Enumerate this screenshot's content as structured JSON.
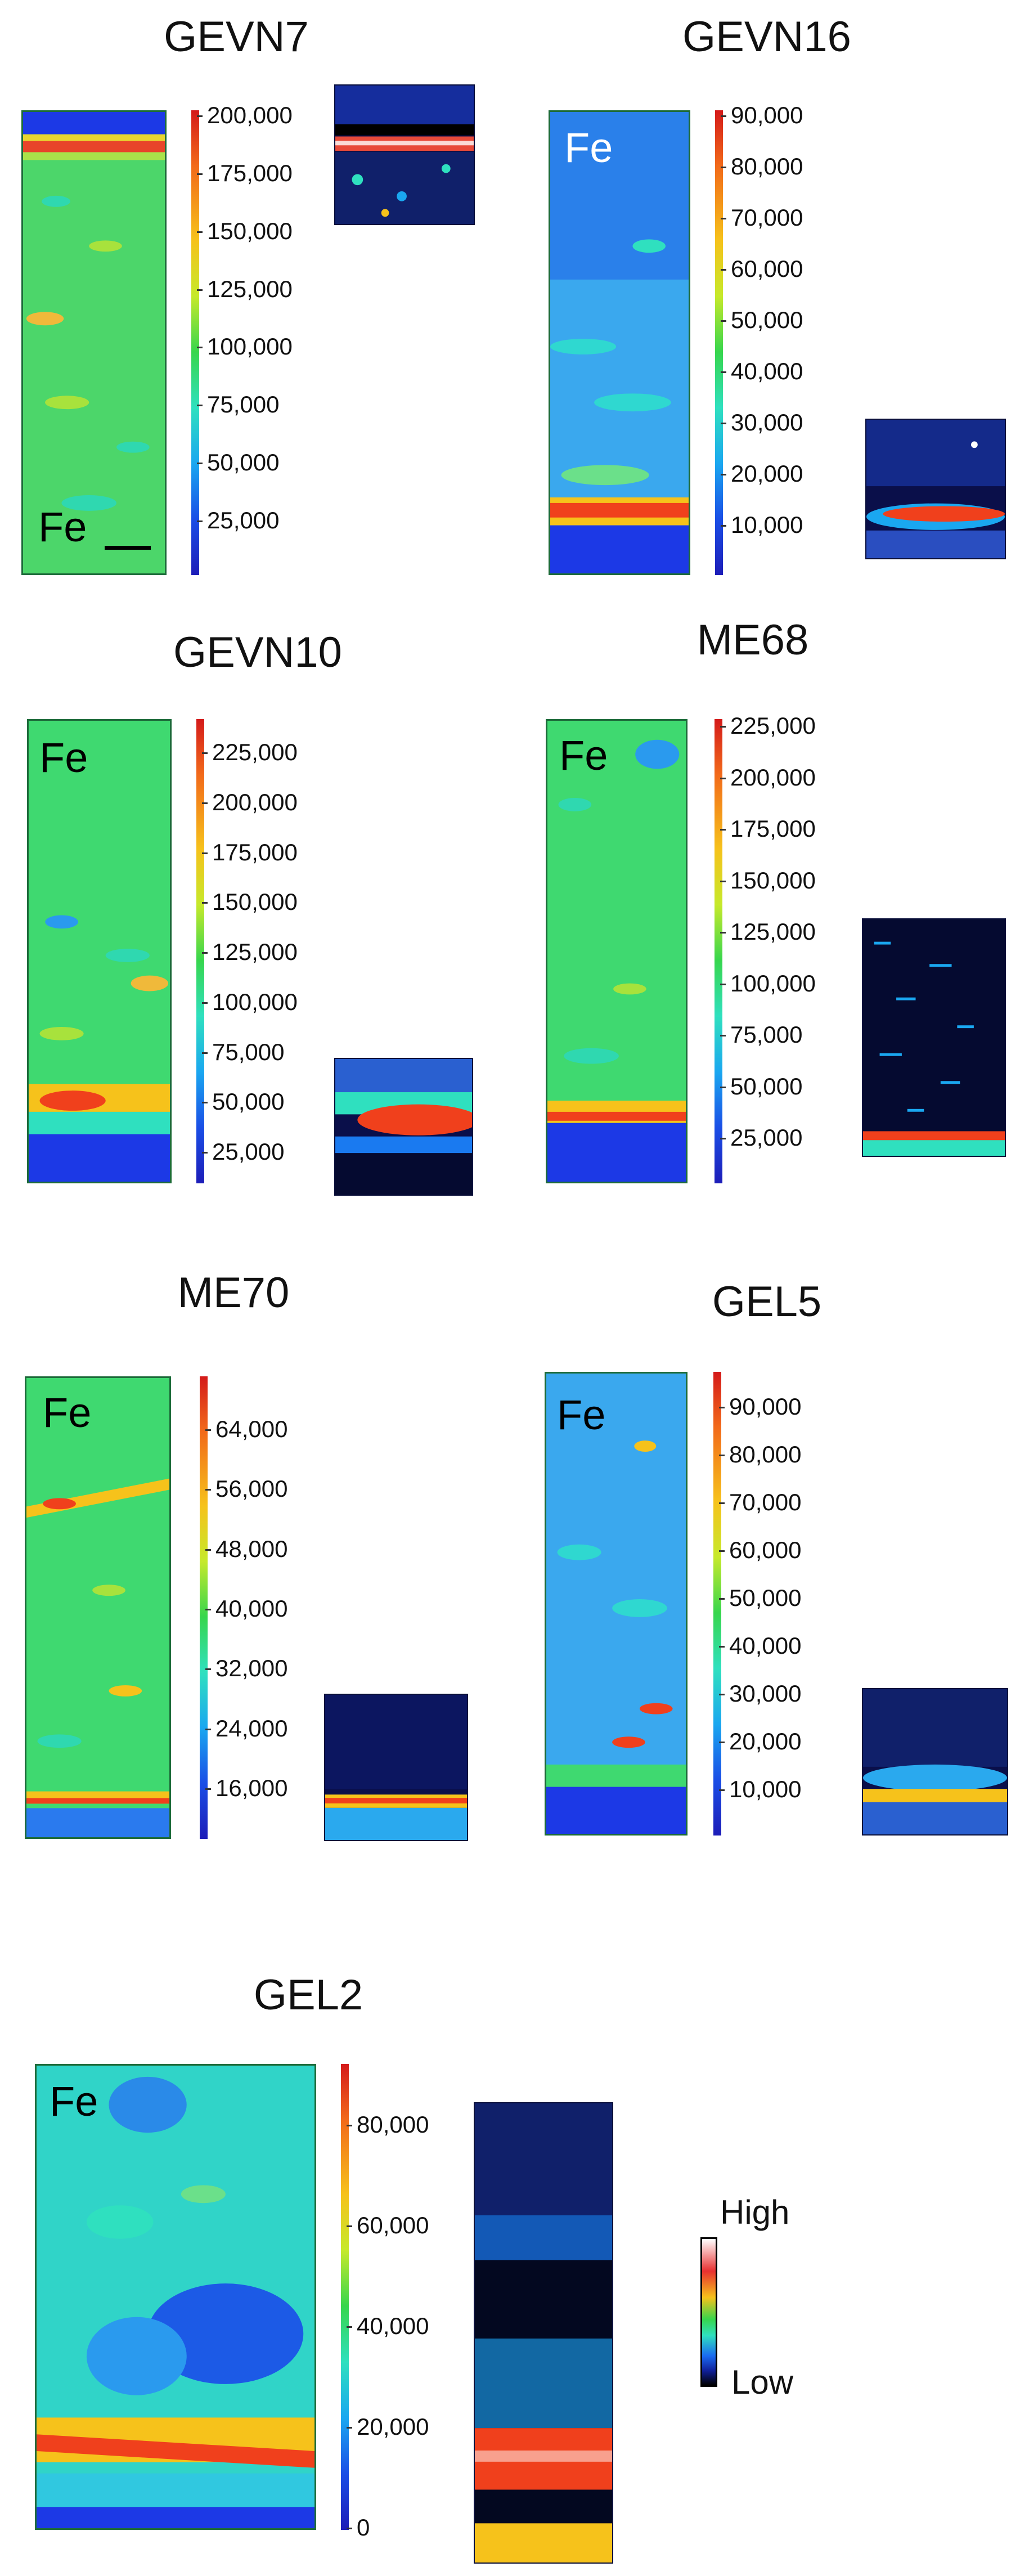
{
  "element": "Fe",
  "panels": [
    {
      "title": "GEVN7",
      "ticks": [
        "200,000",
        "175,000",
        "150,000",
        "125,000",
        "100,000",
        "75,000",
        "50,000",
        "25,000"
      ],
      "fe_color": "#000000"
    },
    {
      "title": "GEVN16",
      "ticks": [
        "90,000",
        "80,000",
        "70,000",
        "60,000",
        "50,000",
        "40,000",
        "30,000",
        "20,000",
        "10,000"
      ],
      "fe_color": "#ffffff"
    },
    {
      "title": "GEVN10",
      "ticks": [
        "225,000",
        "200,000",
        "175,000",
        "150,000",
        "125,000",
        "100,000",
        "75,000",
        "50,000",
        "25,000"
      ],
      "fe_color": "#000000"
    },
    {
      "title": "ME68",
      "ticks": [
        "225,000",
        "200,000",
        "175,000",
        "150,000",
        "125,000",
        "100,000",
        "75,000",
        "50,000",
        "25,000"
      ],
      "fe_color": "#000000"
    },
    {
      "title": "ME70",
      "ticks": [
        "64,000",
        "56,000",
        "48,000",
        "40,000",
        "32,000",
        "24,000",
        "16,000"
      ],
      "fe_color": "#000000"
    },
    {
      "title": "GEL5",
      "ticks": [
        "90,000",
        "80,000",
        "70,000",
        "60,000",
        "50,000",
        "40,000",
        "30,000",
        "20,000",
        "10,000"
      ],
      "fe_color": "#000000"
    },
    {
      "title": "GEL2",
      "ticks": [
        "80,000",
        "60,000",
        "40,000",
        "20,000",
        "0"
      ],
      "fe_color": "#000000"
    }
  ],
  "legend": {
    "high": "High",
    "low": "Low"
  },
  "colors": {
    "map_base": "#3fd98a",
    "map_blue": "#2aa9ee",
    "deep_blue": "#1c39e6",
    "hot": "#f0401c",
    "inset_bg": "#0a0f4a"
  }
}
